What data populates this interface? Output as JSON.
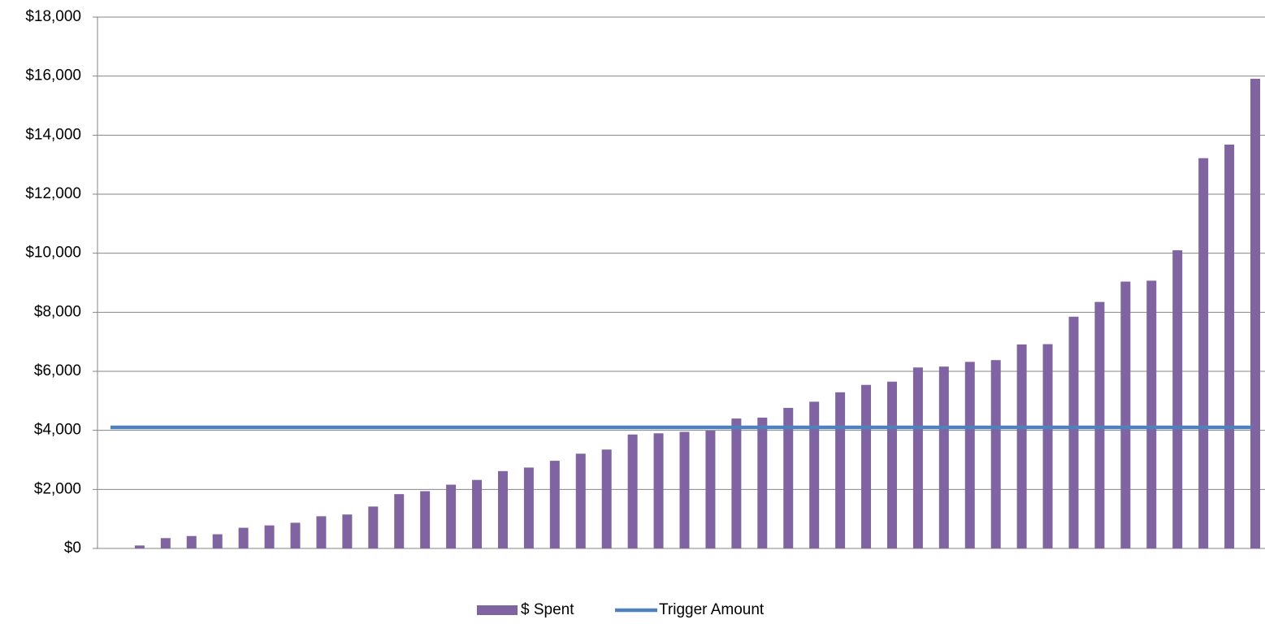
{
  "chart_data": {
    "type": "bar",
    "categories": [
      null,
      null,
      null,
      null,
      null,
      null,
      null,
      null,
      null,
      null,
      null,
      null,
      null,
      null,
      null,
      null,
      null,
      null,
      null,
      null,
      null,
      null,
      null,
      null,
      null,
      null,
      null,
      null,
      null,
      null,
      null,
      null,
      null,
      null,
      null,
      null,
      null,
      null,
      null,
      null,
      null,
      null,
      null,
      null,
      null
    ],
    "series": [
      {
        "name": "$ Spent",
        "type": "bar",
        "color": "#8064a2",
        "values": [
          0,
          100,
          350,
          420,
          480,
          700,
          780,
          870,
          1090,
          1150,
          1420,
          1840,
          1940,
          2160,
          2320,
          2620,
          2740,
          2970,
          3210,
          3350,
          3860,
          3900,
          3950,
          3990,
          4400,
          4430,
          4760,
          4970,
          5290,
          5540,
          5650,
          6130,
          6160,
          6320,
          6380,
          6910,
          6920,
          7850,
          8350,
          9040,
          9070,
          10100,
          13220,
          13680,
          15910
        ]
      },
      {
        "name": "Trigger Amount",
        "type": "line",
        "color": "#4f81bd",
        "values": [
          4100,
          4100,
          4100,
          4100,
          4100,
          4100,
          4100,
          4100,
          4100,
          4100,
          4100,
          4100,
          4100,
          4100,
          4100,
          4100,
          4100,
          4100,
          4100,
          4100,
          4100,
          4100,
          4100,
          4100,
          4100,
          4100,
          4100,
          4100,
          4100,
          4100,
          4100,
          4100,
          4100,
          4100,
          4100,
          4100,
          4100,
          4100,
          4100,
          4100,
          4100,
          4100,
          4100,
          4100,
          4100
        ]
      }
    ],
    "ylim": [
      0,
      18000
    ],
    "yticks": [
      {
        "value": 0,
        "label": "$0"
      },
      {
        "value": 2000,
        "label": "$2,000"
      },
      {
        "value": 4000,
        "label": "$4,000"
      },
      {
        "value": 6000,
        "label": "$6,000"
      },
      {
        "value": 8000,
        "label": "$8,000"
      },
      {
        "value": 10000,
        "label": "$10,000"
      },
      {
        "value": 12000,
        "label": "$12,000"
      },
      {
        "value": 14000,
        "label": "$14,000"
      },
      {
        "value": 16000,
        "label": "$16,000"
      },
      {
        "value": 18000,
        "label": "$18,000"
      }
    ],
    "grid": true,
    "legend": "bottom"
  }
}
